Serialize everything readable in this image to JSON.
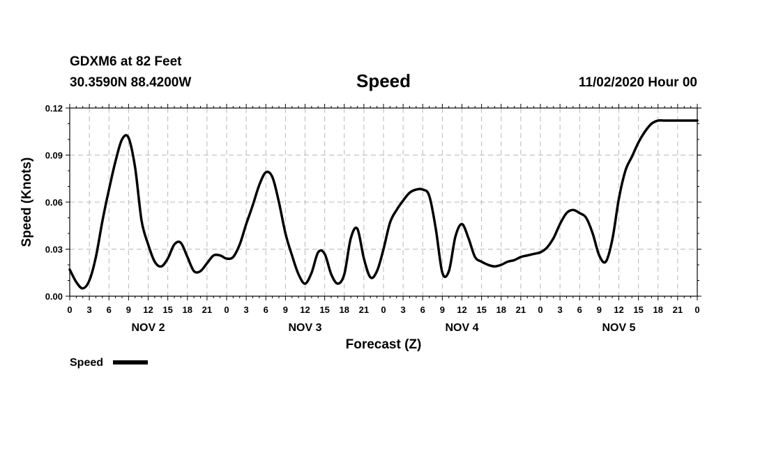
{
  "header": {
    "station": "GDXM6 at 82 Feet",
    "coords": "30.3590N 88.4200W",
    "datetime": "11/02/2020 Hour 00"
  },
  "chart_data": {
    "type": "line",
    "title": "Speed",
    "xlabel": "Forecast (Z)",
    "ylabel": "Speed (Knots)",
    "ylim": [
      0,
      0.12
    ],
    "yticks": [
      0,
      0.03,
      0.06,
      0.09,
      0.12
    ],
    "ytick_labels": [
      "0.00",
      "0.03",
      "0.06",
      "0.09",
      "0.12"
    ],
    "xlim": [
      0,
      96
    ],
    "x_unit": "forecast hour",
    "xtick_labels": [
      "0",
      "3",
      "6",
      "9",
      "12",
      "15",
      "18",
      "21",
      "0",
      "3",
      "6",
      "9",
      "12",
      "15",
      "18",
      "21",
      "0",
      "3",
      "6",
      "9",
      "12",
      "15",
      "18",
      "21",
      "0",
      "3",
      "6",
      "9",
      "12",
      "15",
      "18",
      "21",
      "0"
    ],
    "day_labels": [
      {
        "label": "NOV 2",
        "x": 12
      },
      {
        "label": "NOV 3",
        "x": 36
      },
      {
        "label": "NOV 4",
        "x": 60
      },
      {
        "label": "NOV 5",
        "x": 84
      }
    ],
    "legend": {
      "label": "Speed",
      "position": "bottom-left"
    },
    "grid": true,
    "series": [
      {
        "name": "Speed",
        "x": [
          0,
          1,
          2,
          3,
          4,
          5,
          6,
          7,
          8,
          9,
          10,
          11,
          12,
          13,
          14,
          15,
          16,
          17,
          18,
          19,
          20,
          21,
          22,
          23,
          24,
          25,
          26,
          27,
          28,
          29,
          30,
          31,
          32,
          33,
          34,
          35,
          36,
          37,
          38,
          39,
          40,
          41,
          42,
          43,
          44,
          45,
          46,
          47,
          48,
          49,
          50,
          51,
          52,
          53,
          54,
          55,
          56,
          57,
          58,
          59,
          60,
          61,
          62,
          63,
          64,
          65,
          66,
          67,
          68,
          69,
          70,
          71,
          72,
          73,
          74,
          75,
          76,
          77,
          78,
          79,
          80,
          81,
          82,
          83,
          84,
          85,
          86,
          87,
          88,
          89,
          90,
          91,
          92,
          93,
          94,
          95,
          96
        ],
        "values": [
          0.017,
          0.009,
          0.005,
          0.01,
          0.025,
          0.048,
          0.068,
          0.086,
          0.1,
          0.101,
          0.082,
          0.048,
          0.033,
          0.022,
          0.019,
          0.024,
          0.033,
          0.034,
          0.025,
          0.016,
          0.016,
          0.021,
          0.026,
          0.026,
          0.024,
          0.025,
          0.033,
          0.046,
          0.058,
          0.071,
          0.079,
          0.076,
          0.06,
          0.04,
          0.026,
          0.014,
          0.008,
          0.015,
          0.028,
          0.027,
          0.014,
          0.008,
          0.014,
          0.037,
          0.043,
          0.024,
          0.012,
          0.016,
          0.03,
          0.047,
          0.055,
          0.061,
          0.066,
          0.068,
          0.068,
          0.064,
          0.043,
          0.015,
          0.016,
          0.038,
          0.046,
          0.037,
          0.025,
          0.022,
          0.02,
          0.019,
          0.02,
          0.022,
          0.023,
          0.025,
          0.026,
          0.027,
          0.028,
          0.031,
          0.037,
          0.046,
          0.053,
          0.055,
          0.053,
          0.05,
          0.04,
          0.026,
          0.022,
          0.036,
          0.062,
          0.08,
          0.089,
          0.098,
          0.105,
          0.11,
          0.112,
          0.112,
          0.112,
          0.112,
          0.112,
          0.112,
          0.112
        ]
      }
    ]
  }
}
